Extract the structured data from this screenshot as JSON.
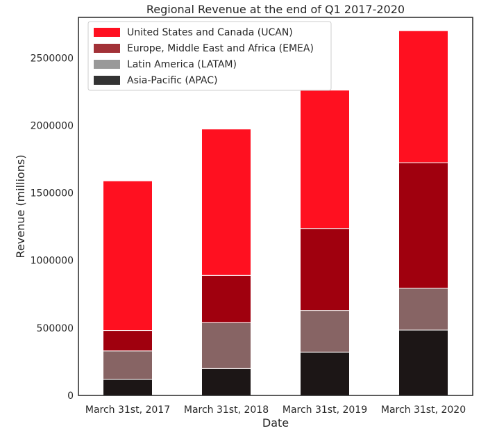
{
  "chart_data": {
    "type": "bar",
    "stacked": true,
    "title": "Regional Revenue at the end of Q1 2017-2020",
    "xlabel": "Date",
    "ylabel": "Revenue (millions)",
    "categories": [
      "March 31st, 2017",
      "March 31st, 2018",
      "March 31st, 2019",
      "March 31st, 2020"
    ],
    "ylim": [
      0,
      2800000
    ],
    "yticks": [
      0,
      500000,
      1000000,
      1500000,
      2000000,
      2500000
    ],
    "grid": false,
    "legend_position": "top-left",
    "series": [
      {
        "name": "Asia-Pacific (APAC)",
        "legend_color": "#333333",
        "bar_color": "#1c1616",
        "values": [
          119000,
          199000,
          320000,
          484000
        ]
      },
      {
        "name": "Latin America (LATAM)",
        "legend_color": "#999999",
        "bar_color": "#876464",
        "values": [
          211000,
          340000,
          310000,
          310000
        ]
      },
      {
        "name": "Europe, Middle East and Africa (EMEA)",
        "legend_color": "#a23137",
        "bar_color": "#a0000e",
        "values": [
          151000,
          350000,
          607000,
          930000
        ]
      },
      {
        "name": "United States and Canada (UCAN)",
        "legend_color": "#ff1020",
        "bar_color": "#ff1020",
        "values": [
          1108000,
          1084000,
          1024000,
          977000
        ]
      }
    ],
    "legend_order": [
      3,
      2,
      1,
      0
    ]
  }
}
